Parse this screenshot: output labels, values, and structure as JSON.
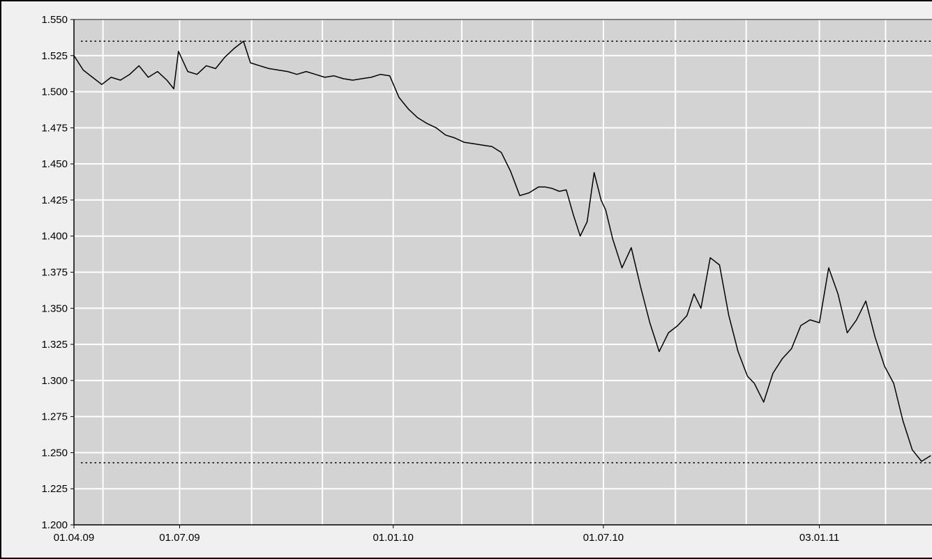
{
  "chart_data": {
    "type": "line",
    "title": "",
    "xlabel": "",
    "ylabel": "",
    "ylim": [
      1.2,
      1.55
    ],
    "y_ticks": [
      "1.200",
      "1.225",
      "1.250",
      "1.275",
      "1.300",
      "1.325",
      "1.350",
      "1.375",
      "1.400",
      "1.425",
      "1.450",
      "1.475",
      "1.500",
      "1.525",
      "1.550"
    ],
    "x_ticks": [
      {
        "label": "01.04.09",
        "date": "2009-04-01"
      },
      {
        "label": "01.07.09",
        "date": "2009-07-01"
      },
      {
        "label": "01.01.10",
        "date": "2010-01-01"
      },
      {
        "label": "01.07.10",
        "date": "2010-07-01"
      },
      {
        "label": "03.01.11",
        "date": "2011-01-03"
      }
    ],
    "xlim": [
      "2009-04-01",
      "2011-04-10"
    ],
    "grid": true,
    "reference_lines": [
      1.535,
      1.243
    ],
    "colors": {
      "plot_bg": "#d3d3d3",
      "grid": "#ffffff",
      "line": "#000000"
    },
    "series": [
      {
        "x": [
          "2009-04-01",
          "2009-04-09",
          "2009-04-17",
          "2009-04-25",
          "2009-05-03",
          "2009-05-11",
          "2009-05-19",
          "2009-05-27",
          "2009-06-04",
          "2009-06-12",
          "2009-06-20",
          "2009-06-26",
          "2009-06-30",
          "2009-07-08",
          "2009-07-16",
          "2009-07-24",
          "2009-08-01",
          "2009-08-09",
          "2009-08-17",
          "2009-08-25",
          "2009-08-31",
          "2009-09-08",
          "2009-09-16",
          "2009-09-24",
          "2009-10-02",
          "2009-10-10",
          "2009-10-18",
          "2009-10-26",
          "2009-11-03",
          "2009-11-11",
          "2009-11-19",
          "2009-11-27",
          "2009-12-05",
          "2009-12-13",
          "2009-12-21",
          "2009-12-29",
          "2010-01-06",
          "2010-01-14",
          "2010-01-22",
          "2010-01-30",
          "2010-02-07",
          "2010-02-15",
          "2010-02-23",
          "2010-03-03",
          "2010-03-11",
          "2010-03-19",
          "2010-03-27",
          "2010-04-04",
          "2010-04-12",
          "2010-04-20",
          "2010-04-28",
          "2010-05-06",
          "2010-05-12",
          "2010-05-18",
          "2010-05-24",
          "2010-05-30",
          "2010-06-05",
          "2010-06-11",
          "2010-06-17",
          "2010-06-23",
          "2010-06-29",
          "2010-07-03",
          "2010-07-09",
          "2010-07-17",
          "2010-07-25",
          "2010-08-02",
          "2010-08-10",
          "2010-08-18",
          "2010-08-26",
          "2010-09-03",
          "2010-09-11",
          "2010-09-17",
          "2010-09-23",
          "2010-10-01",
          "2010-10-09",
          "2010-10-17",
          "2010-10-25",
          "2010-11-02",
          "2010-11-08",
          "2010-11-16",
          "2010-11-24",
          "2010-12-02",
          "2010-12-10",
          "2010-12-18",
          "2010-12-26",
          "2011-01-03",
          "2011-01-11",
          "2011-01-19",
          "2011-01-27",
          "2011-02-04",
          "2011-02-12",
          "2011-02-20",
          "2011-02-28",
          "2011-03-08",
          "2011-03-16",
          "2011-03-24",
          "2011-04-01",
          "2011-04-09"
        ],
        "y": [
          1.525,
          1.515,
          1.51,
          1.505,
          1.51,
          1.508,
          1.512,
          1.518,
          1.51,
          1.514,
          1.508,
          1.502,
          1.528,
          1.514,
          1.512,
          1.518,
          1.516,
          1.524,
          1.53,
          1.535,
          1.52,
          1.518,
          1.516,
          1.515,
          1.514,
          1.512,
          1.514,
          1.512,
          1.51,
          1.511,
          1.509,
          1.508,
          1.509,
          1.51,
          1.512,
          1.511,
          1.496,
          1.488,
          1.482,
          1.478,
          1.475,
          1.47,
          1.468,
          1.465,
          1.464,
          1.463,
          1.462,
          1.458,
          1.445,
          1.428,
          1.43,
          1.434,
          1.434,
          1.433,
          1.431,
          1.432,
          1.415,
          1.4,
          1.41,
          1.444,
          1.425,
          1.418,
          1.398,
          1.378,
          1.392,
          1.365,
          1.34,
          1.32,
          1.333,
          1.338,
          1.345,
          1.36,
          1.35,
          1.385,
          1.38,
          1.345,
          1.32,
          1.303,
          1.298,
          1.285,
          1.305,
          1.315,
          1.322,
          1.338,
          1.342,
          1.34,
          1.378,
          1.36,
          1.333,
          1.342,
          1.355,
          1.33,
          1.31,
          1.298,
          1.272,
          1.252,
          1.244,
          1.248
        ]
      }
    ]
  }
}
